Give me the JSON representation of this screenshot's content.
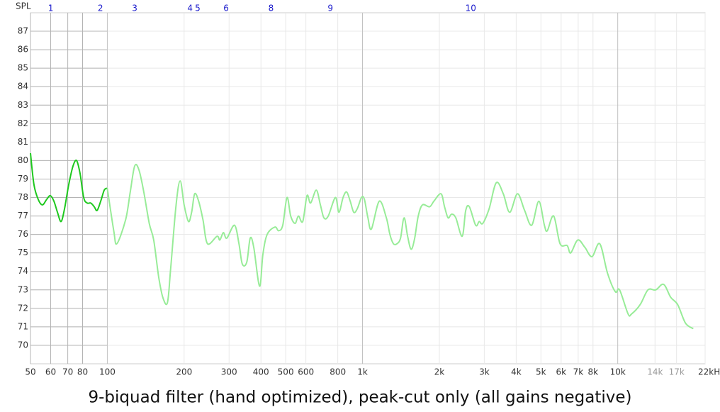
{
  "chart_data": {
    "type": "line",
    "title": "9-biquad filter (hand optimized), peak-cut only (all gains negative)",
    "y_label": "SPL",
    "log_x": true,
    "grid": true,
    "xlim": [
      50,
      22000
    ],
    "ylim": [
      69,
      88
    ],
    "xticks": [
      50,
      60,
      70,
      80,
      100,
      200,
      300,
      400,
      500,
      600,
      800,
      {
        "value": 1000,
        "label": "1k"
      },
      {
        "value": 2000,
        "label": "2k"
      },
      {
        "value": 3000,
        "label": "3k"
      },
      {
        "value": 4000,
        "label": "4k"
      },
      {
        "value": 5000,
        "label": "5k"
      },
      {
        "value": 6000,
        "label": "6k"
      },
      {
        "value": 7000,
        "label": "7k"
      },
      {
        "value": 8000,
        "label": "8k"
      },
      {
        "value": 10000,
        "label": "10k"
      },
      {
        "value": 14000,
        "label": "14k"
      },
      {
        "value": 17000,
        "label": "17k"
      },
      {
        "value": 22000,
        "label": "22kHz"
      }
    ],
    "yticks": [
      70,
      71,
      72,
      73,
      74,
      75,
      76,
      77,
      78,
      79,
      80,
      81,
      82,
      83,
      84,
      85,
      86,
      87
    ],
    "filter_markers": [
      {
        "label": "1",
        "freq": 60
      },
      {
        "label": "2",
        "freq": 94
      },
      {
        "label": "3",
        "freq": 128
      },
      {
        "label": "4",
        "freq": 211
      },
      {
        "label": "5",
        "freq": 226
      },
      {
        "label": "6",
        "freq": 292
      },
      {
        "label": "8",
        "freq": 438
      },
      {
        "label": "9",
        "freq": 748
      },
      {
        "label": "10",
        "freq": 2655
      }
    ],
    "series": [
      {
        "color": "#1ec81e",
        "x": [
          50,
          51.6,
          53.6,
          55.7,
          57.9,
          59.8,
          61.8,
          63.8,
          65.9,
          68.0,
          70.6,
          73.4,
          75.8,
          78.2,
          80.8,
          83.4,
          86.1,
          88.9,
          91.2,
          94.2,
          97.3,
          100
        ],
        "values": [
          80.4,
          78.7,
          77.9,
          77.6,
          77.9,
          78.1,
          77.8,
          77.2,
          76.7,
          77.4,
          78.7,
          79.7,
          80.0,
          79.3,
          78.0,
          77.7,
          77.7,
          77.5,
          77.3,
          77.8,
          78.4,
          78.5
        ]
      },
      {
        "color": "#98ec98",
        "x": [
          100,
          106,
          109,
          118,
          123,
          128,
          133,
          139,
          146,
          152,
          159,
          165,
          172,
          177,
          186,
          193,
          200,
          208,
          214,
          220,
          228,
          237,
          247,
          269,
          276,
          285,
          294,
          315,
          328,
          338,
          352,
          363,
          375,
          395,
          407,
          423,
          454,
          469,
          487,
          506,
          523,
          544,
          561,
          583,
          606,
          626,
          659,
          684,
          706,
          734,
          783,
          808,
          839,
          867,
          895,
          924,
          954,
          991,
          1017,
          1050,
          1084,
          1163,
          1240,
          1280,
          1322,
          1365,
          1409,
          1455,
          1502,
          1551,
          1601,
          1653,
          1718,
          1832,
          1904,
          2030,
          2096,
          2164,
          2234,
          2321,
          2458,
          2538,
          2621,
          2776,
          2866,
          2960,
          3135,
          3342,
          3562,
          3773,
          4048,
          4316,
          4601,
          4905,
          5160,
          5296,
          5610,
          5943,
          6337,
          6543,
          6975,
          7437,
          7924,
          8504,
          9120,
          9784,
          10168,
          10978,
          11335,
          12243,
          13134,
          14092,
          15123,
          16122,
          17180,
          18430,
          19778
        ],
        "values": [
          78.5,
          76.2,
          75.5,
          76.8,
          78.3,
          79.7,
          79.5,
          78.3,
          76.6,
          75.7,
          73.7,
          72.6,
          72.3,
          74.1,
          77.6,
          78.9,
          77.6,
          76.7,
          77.2,
          78.2,
          77.8,
          76.8,
          75.5,
          75.9,
          75.7,
          76.1,
          75.8,
          76.5,
          75.5,
          74.4,
          74.5,
          75.8,
          75.3,
          73.2,
          74.9,
          76.0,
          76.4,
          76.2,
          76.5,
          78.0,
          77.0,
          76.6,
          77.0,
          76.7,
          78.1,
          77.7,
          78.4,
          77.6,
          76.9,
          77.0,
          78.0,
          77.2,
          78.0,
          78.3,
          77.8,
          77.2,
          77.4,
          78.0,
          77.9,
          76.9,
          76.3,
          77.8,
          76.9,
          76.0,
          75.5,
          75.5,
          75.8,
          76.9,
          75.9,
          75.2,
          75.8,
          77.0,
          77.6,
          77.5,
          77.8,
          78.2,
          77.5,
          76.9,
          77.1,
          76.9,
          75.9,
          77.3,
          77.5,
          76.5,
          76.7,
          76.6,
          77.4,
          78.8,
          78.2,
          77.2,
          78.2,
          77.3,
          76.5,
          77.8,
          76.5,
          76.2,
          77.0,
          75.5,
          75.4,
          75.0,
          75.7,
          75.3,
          74.8,
          75.5,
          73.9,
          72.9,
          73.0,
          71.7,
          71.7,
          72.2,
          73.0,
          73.0,
          73.3,
          72.6,
          72.2,
          71.2,
          70.9
        ]
      }
    ]
  }
}
